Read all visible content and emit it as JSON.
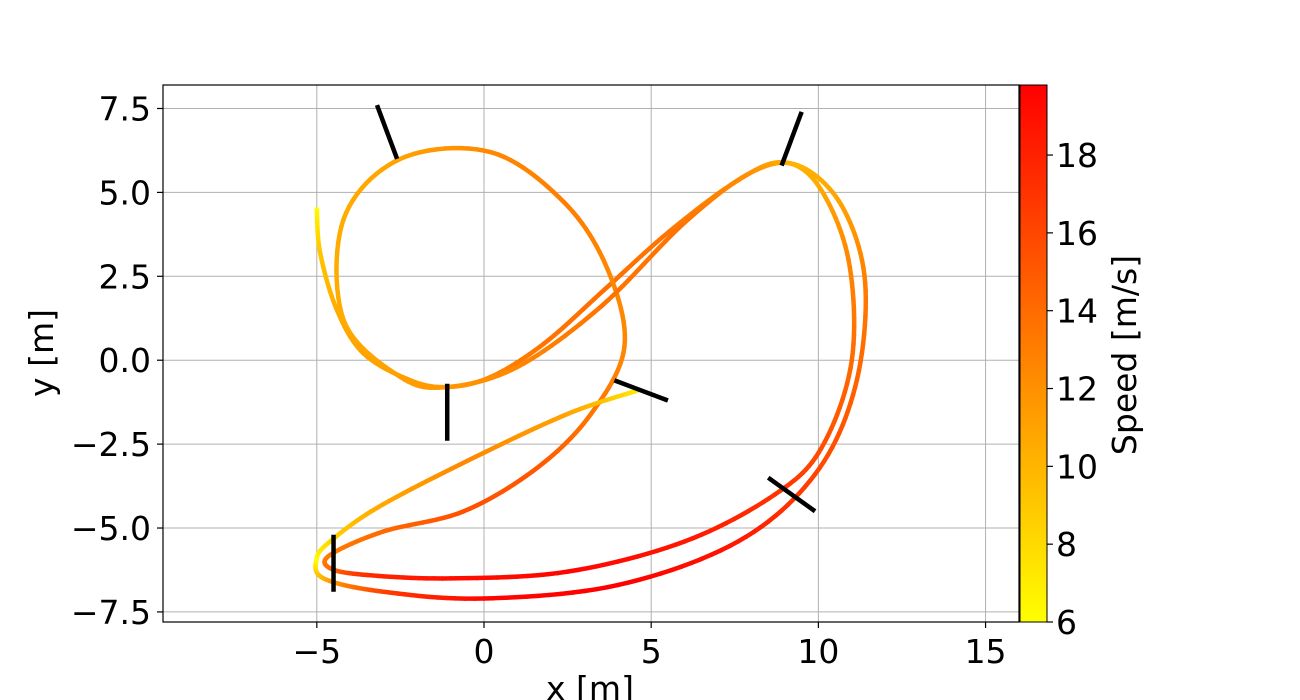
{
  "chart_data": {
    "type": "line",
    "title": "",
    "xlabel": "x [m]",
    "ylabel": "y [m]",
    "xlim": [
      -9.6,
      16.0
    ],
    "ylim": [
      -7.8,
      8.2
    ],
    "x_ticks": [
      -5,
      0,
      5,
      10,
      15
    ],
    "x_tick_labels": [
      "−5",
      "0",
      "5",
      "10",
      "15"
    ],
    "y_ticks": [
      -7.5,
      -5.0,
      -2.5,
      0.0,
      2.5,
      5.0,
      7.5
    ],
    "y_tick_labels": [
      "−7.5",
      "−5.0",
      "−2.5",
      "0.0",
      "2.5",
      "5.0",
      "7.5"
    ],
    "grid": true,
    "colorbar": {
      "label": "Speed [m/s]",
      "range": [
        6,
        19.8
      ],
      "ticks": [
        6,
        8,
        10,
        12,
        14,
        16,
        18
      ],
      "tick_labels": [
        "6",
        "8",
        "10",
        "12",
        "14",
        "16",
        "18"
      ],
      "colormap": "autumn_r",
      "color_low": "#ffff00",
      "color_high": "#ff0000"
    },
    "series": [
      {
        "color_by": "speed",
        "points": [
          {
            "x": -5.0,
            "y": 4.5,
            "speed": 6.0
          },
          {
            "x": -4.9,
            "y": 3.2,
            "speed": 9.0
          },
          {
            "x": -4.4,
            "y": 1.5,
            "speed": 10.5
          },
          {
            "x": -3.6,
            "y": 0.2,
            "speed": 11.0
          },
          {
            "x": -2.2,
            "y": -0.6,
            "speed": 11.3
          },
          {
            "x": -1.1,
            "y": -0.8,
            "speed": 11.5
          },
          {
            "x": 0.2,
            "y": -0.5,
            "speed": 12.5
          },
          {
            "x": 1.8,
            "y": 0.5,
            "speed": 13.5
          },
          {
            "x": 3.6,
            "y": 2.1,
            "speed": 13.8
          },
          {
            "x": 5.5,
            "y": 3.8,
            "speed": 13.5
          },
          {
            "x": 7.5,
            "y": 5.3,
            "speed": 12.0
          },
          {
            "x": 8.9,
            "y": 5.9,
            "speed": 10.0
          },
          {
            "x": 10.0,
            "y": 5.2,
            "speed": 10.5
          },
          {
            "x": 10.9,
            "y": 3.0,
            "speed": 12.5
          },
          {
            "x": 11.0,
            "y": 0.0,
            "speed": 14.0
          },
          {
            "x": 10.1,
            "y": -2.6,
            "speed": 15.5
          },
          {
            "x": 8.7,
            "y": -4.0,
            "speed": 17.0
          },
          {
            "x": 6.0,
            "y": -5.4,
            "speed": 18.5
          },
          {
            "x": 2.5,
            "y": -6.3,
            "speed": 19.5
          },
          {
            "x": -1.0,
            "y": -6.5,
            "speed": 19.0
          },
          {
            "x": -3.5,
            "y": -6.4,
            "speed": 17.5
          },
          {
            "x": -4.6,
            "y": -6.2,
            "speed": 14.0
          },
          {
            "x": -4.6,
            "y": -5.8,
            "speed": 13.0
          },
          {
            "x": -3.0,
            "y": -5.1,
            "speed": 14.0
          },
          {
            "x": -0.6,
            "y": -4.5,
            "speed": 15.5
          },
          {
            "x": 1.6,
            "y": -3.2,
            "speed": 15.0
          },
          {
            "x": 3.2,
            "y": -1.6,
            "speed": 13.5
          },
          {
            "x": 4.2,
            "y": 0.4,
            "speed": 12.5
          },
          {
            "x": 3.7,
            "y": 2.7,
            "speed": 12.5
          },
          {
            "x": 2.4,
            "y": 4.7,
            "speed": 13.0
          },
          {
            "x": 0.2,
            "y": 6.2,
            "speed": 12.5
          },
          {
            "x": -2.5,
            "y": 6.0,
            "speed": 11.0
          },
          {
            "x": -4.2,
            "y": 4.2,
            "speed": 10.5
          },
          {
            "x": -4.2,
            "y": 1.2,
            "speed": 10.5
          },
          {
            "x": -2.5,
            "y": -0.5,
            "speed": 11.2
          },
          {
            "x": -1.1,
            "y": -0.8,
            "speed": 11.5
          },
          {
            "x": 1.0,
            "y": -0.2,
            "speed": 12.5
          },
          {
            "x": 3.5,
            "y": 1.6,
            "speed": 13.5
          },
          {
            "x": 6.0,
            "y": 4.1,
            "speed": 13.5
          },
          {
            "x": 8.0,
            "y": 5.6,
            "speed": 12.0
          },
          {
            "x": 9.4,
            "y": 5.8,
            "speed": 10.0
          },
          {
            "x": 10.7,
            "y": 4.6,
            "speed": 11.0
          },
          {
            "x": 11.4,
            "y": 2.3,
            "speed": 13.0
          },
          {
            "x": 11.1,
            "y": -0.8,
            "speed": 14.5
          },
          {
            "x": 9.9,
            "y": -3.4,
            "speed": 16.0
          },
          {
            "x": 7.6,
            "y": -5.4,
            "speed": 18.5
          },
          {
            "x": 4.0,
            "y": -6.7,
            "speed": 19.8
          },
          {
            "x": 0.0,
            "y": -7.1,
            "speed": 19.5
          },
          {
            "x": -3.0,
            "y": -6.9,
            "speed": 16.5
          },
          {
            "x": -4.8,
            "y": -6.5,
            "speed": 10.5
          },
          {
            "x": -5.0,
            "y": -5.9,
            "speed": 6.0
          },
          {
            "x": -4.6,
            "y": -5.4,
            "speed": 8.0
          },
          {
            "x": -3.2,
            "y": -4.4,
            "speed": 10.5
          },
          {
            "x": -0.5,
            "y": -3.0,
            "speed": 12.5
          },
          {
            "x": 2.5,
            "y": -1.6,
            "speed": 11.0
          },
          {
            "x": 4.6,
            "y": -0.9,
            "speed": 7.0
          }
        ]
      }
    ],
    "gates": [
      {
        "x1": -2.6,
        "y1": 6.0,
        "x2": -3.2,
        "y2": 7.6
      },
      {
        "x1": 8.9,
        "y1": 5.8,
        "x2": 9.5,
        "y2": 7.4
      },
      {
        "x1": -1.1,
        "y1": -0.7,
        "x2": -1.1,
        "y2": -2.4
      },
      {
        "x1": 3.9,
        "y1": -0.6,
        "x2": 5.5,
        "y2": -1.2
      },
      {
        "x1": 8.5,
        "y1": -3.5,
        "x2": 9.9,
        "y2": -4.5
      },
      {
        "x1": -4.5,
        "y1": -5.2,
        "x2": -4.5,
        "y2": -6.9
      }
    ]
  }
}
